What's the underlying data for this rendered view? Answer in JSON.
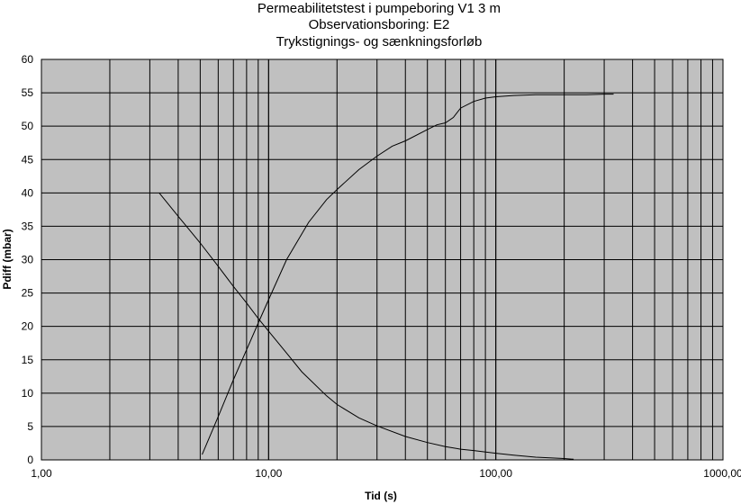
{
  "chart_data": {
    "type": "line",
    "title_lines": [
      "Permeabilitetstest i pumpeboring V1 3 m",
      "Observationsboring: E2",
      "Trykstignings- og sænkningsforløb"
    ],
    "xlabel": "Tid (s)",
    "ylabel": "Pdiff (mbar)",
    "x_scale": "log",
    "xlim": [
      1,
      1000
    ],
    "ylim": [
      0,
      60
    ],
    "x_ticks": [
      1,
      10,
      100,
      1000
    ],
    "x_tick_labels": [
      "1,00",
      "10,00",
      "100,00",
      "1000,00"
    ],
    "y_ticks": [
      0,
      5,
      10,
      15,
      20,
      25,
      30,
      35,
      40,
      45,
      50,
      55,
      60
    ],
    "y_tick_labels": [
      "0",
      "5",
      "10",
      "15",
      "20",
      "25",
      "30",
      "35",
      "40",
      "45",
      "50",
      "55",
      "60"
    ],
    "grid": true,
    "plot_background": "#c0c0c0",
    "line_color": "#000000",
    "series": [
      {
        "x": [
          5.1,
          6,
          7,
          8,
          9,
          10,
          12,
          15,
          18,
          20,
          25,
          30,
          35,
          40,
          50,
          55,
          60,
          65,
          70,
          80,
          90,
          100,
          120,
          150,
          200,
          250,
          300,
          330
        ],
        "y": [
          0.8,
          6.5,
          12,
          16.5,
          20.5,
          24,
          30,
          35.6,
          39,
          40.5,
          43.5,
          45.5,
          47,
          47.8,
          49.5,
          50.2,
          50.5,
          51.3,
          52.7,
          53.7,
          54.2,
          54.4,
          54.6,
          54.7,
          54.7,
          54.7,
          54.8,
          54.8
        ]
      },
      {
        "x": [
          3.3,
          4,
          5,
          6,
          7,
          8,
          9,
          10,
          12,
          14,
          15,
          18,
          20,
          25,
          30,
          40,
          50,
          60,
          70,
          80,
          100,
          120,
          150,
          200,
          220
        ],
        "y": [
          40,
          36.5,
          32.5,
          29,
          26,
          23.5,
          21.2,
          19.3,
          16,
          13.2,
          12.2,
          9.6,
          8.3,
          6.3,
          5.1,
          3.5,
          2.6,
          2,
          1.6,
          1.4,
          1,
          0.7,
          0.4,
          0.2,
          0.1
        ]
      }
    ]
  }
}
